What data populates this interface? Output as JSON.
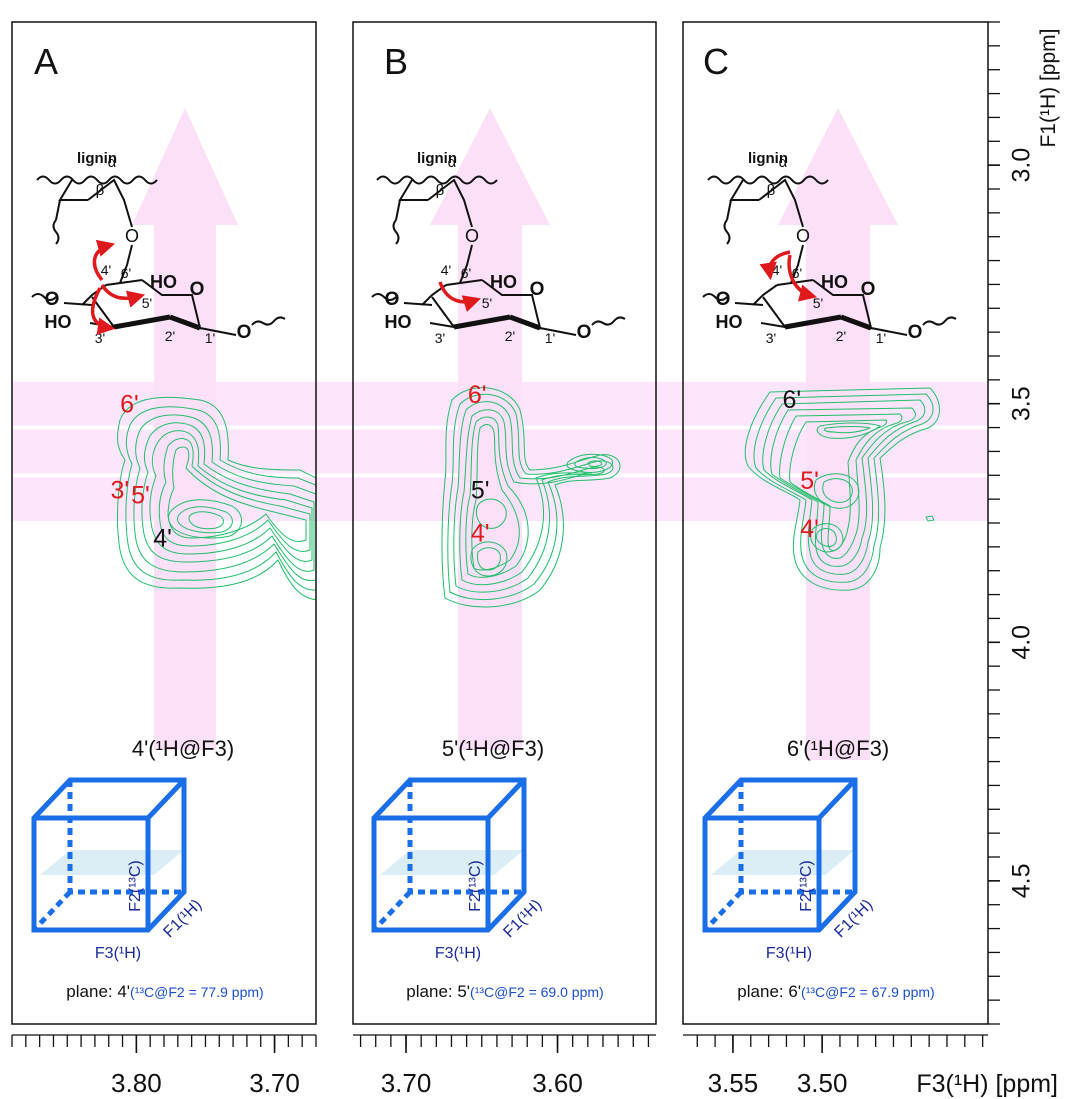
{
  "chart_data": {
    "type": "contour",
    "y_axis": {
      "label": "F1(¹H) [ppm]",
      "ticks": [
        3.0,
        3.5,
        4.0,
        4.5
      ],
      "range": [
        2.7,
        4.8
      ]
    },
    "x_axis_label": "F3(¹H) [ppm]",
    "bands_ppm": [
      3.5,
      3.6,
      3.7
    ],
    "panels": [
      {
        "letter": "A",
        "x_ticks": [
          3.8,
          3.7
        ],
        "x_range": [
          3.89,
          3.67
        ],
        "slice_label": "4'(¹H@F3)",
        "plane_prefix": "plane: 4'",
        "plane_value": "(¹³C@F2 = 77.9 ppm)",
        "peak_labels": [
          {
            "text": "6'",
            "color": "#e0191c",
            "x": 3.805,
            "y": 3.5
          },
          {
            "text": "3'",
            "color": "#e0191c",
            "x": 3.812,
            "y": 3.68
          },
          {
            "text": "5'",
            "color": "#e0191c",
            "x": 3.797,
            "y": 3.69
          },
          {
            "text": "4'",
            "color": "#111111",
            "x": 3.781,
            "y": 3.78
          }
        ]
      },
      {
        "letter": "B",
        "x_ticks": [
          3.7,
          3.6
        ],
        "x_range": [
          3.735,
          3.535
        ],
        "slice_label": "5'(¹H@F3)",
        "plane_prefix": "plane: 5'",
        "plane_value": "(¹³C@F2 = 69.0 ppm)",
        "peak_labels": [
          {
            "text": "6'",
            "color": "#e0191c",
            "x": 3.653,
            "y": 3.48
          },
          {
            "text": "5'",
            "color": "#111111",
            "x": 3.651,
            "y": 3.68
          },
          {
            "text": "4'",
            "color": "#e0191c",
            "x": 3.651,
            "y": 3.77
          }
        ]
      },
      {
        "letter": "C",
        "x_ticks": [
          3.55,
          3.5
        ],
        "x_range": [
          3.578,
          3.407
        ],
        "slice_label": "6'(¹H@F3)",
        "plane_prefix": "plane: 6'",
        "plane_value": "(¹³C@F2 = 67.9 ppm)",
        "peak_labels": [
          {
            "text": "6'",
            "color": "#111111",
            "x": 3.517,
            "y": 3.49
          },
          {
            "text": "5'",
            "color": "#e0191c",
            "x": 3.507,
            "y": 3.66
          },
          {
            "text": "4'",
            "color": "#e0191c",
            "x": 3.507,
            "y": 3.76
          }
        ]
      }
    ]
  },
  "structure_labels": {
    "lignin": "lignin",
    "alpha": "α",
    "beta": "β",
    "hydroxyl": "HO",
    "oxygen": "O",
    "atoms": [
      "6'",
      "4'",
      "5'",
      "3'",
      "2'",
      "1'"
    ]
  },
  "cube_axes": {
    "f3": "F3(¹H)",
    "f1": "F1(¹H)",
    "f2": "F2(¹³C)"
  },
  "colors": {
    "contour": "#1fbf6a",
    "band": "#fde6fb",
    "arrow": "#fbe0f7",
    "accent_red": "#e0191c",
    "cube": "#1a6fe8",
    "plane_text": "#1a4fd0"
  }
}
